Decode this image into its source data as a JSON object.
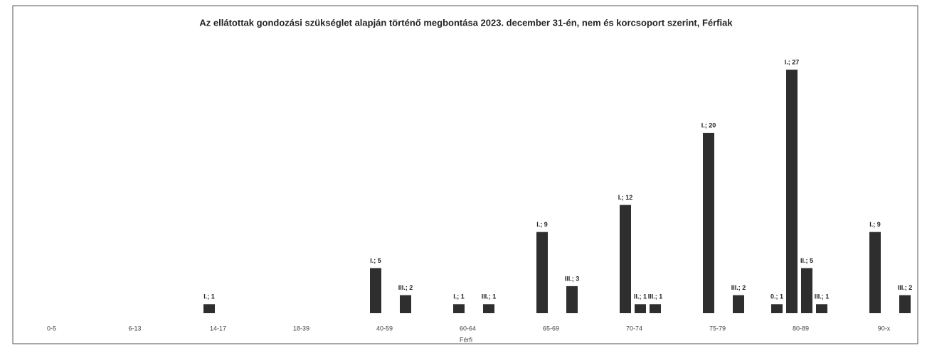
{
  "chart_data": {
    "type": "bar",
    "title": "Az ellátottak gondozási szükséglet alapján történő megbontása 2023. december 31-én, nem és korcsoport szerint, Férfiak",
    "x_label": "Férfi",
    "categories": [
      "0-5",
      "6-13",
      "14-17",
      "18-39",
      "40-59",
      "60-64",
      "65-69",
      "70-74",
      "75-79",
      "80-89",
      "90-x"
    ],
    "ylim": [
      0,
      30
    ],
    "series": [
      {
        "name": "0.",
        "color": "#2e2e2e",
        "values": [
          null,
          null,
          null,
          null,
          null,
          null,
          null,
          null,
          null,
          1,
          null
        ],
        "value_labels": [
          null,
          null,
          null,
          null,
          null,
          null,
          null,
          null,
          null,
          "0.; 1",
          null
        ]
      },
      {
        "name": "I.",
        "color": "#2e2e2e",
        "values": [
          null,
          null,
          1,
          null,
          5,
          1,
          9,
          12,
          20,
          27,
          9
        ],
        "value_labels": [
          null,
          null,
          "I.; 1",
          null,
          "I.; 5",
          "I.; 1",
          "I.; 9",
          "I.; 12",
          "I.; 20",
          "I.; 27",
          "I.; 9"
        ]
      },
      {
        "name": "II.",
        "color": "#2e2e2e",
        "values": [
          null,
          null,
          null,
          null,
          null,
          null,
          null,
          1,
          null,
          5,
          null
        ],
        "value_labels": [
          null,
          null,
          null,
          null,
          null,
          null,
          null,
          "II.; 1",
          null,
          "II.; 5",
          null
        ]
      },
      {
        "name": "III.",
        "color": "#2e2e2e",
        "values": [
          null,
          null,
          null,
          null,
          2,
          1,
          3,
          1,
          2,
          1,
          2
        ],
        "value_labels": [
          null,
          null,
          null,
          null,
          "III.; 2",
          "III.; 1",
          "III.; 3",
          "III.; 1",
          "III.; 2",
          "III.; 1",
          "III.; 2"
        ]
      }
    ]
  }
}
